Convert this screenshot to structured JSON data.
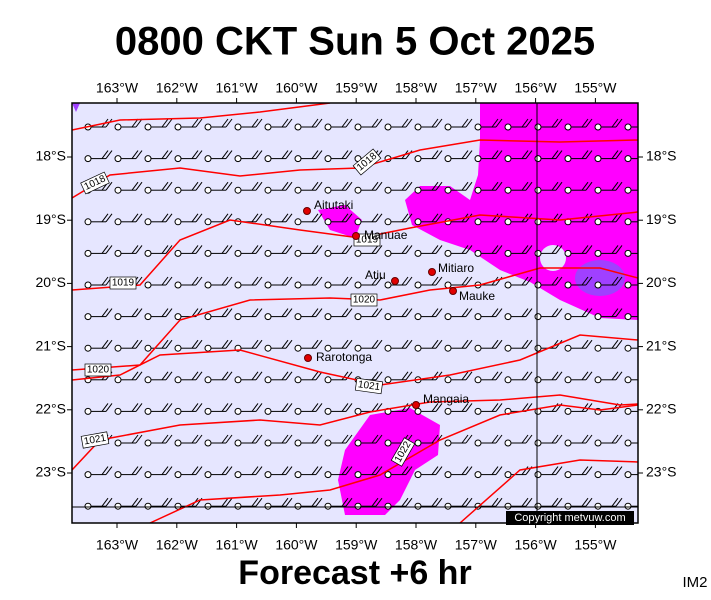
{
  "title": "0800 CKT Sun 5 Oct 2025",
  "footer": "Forecast +6 hr",
  "corner_label": "IM2",
  "copyright": "Copyright metvuw.com",
  "longitudes": [
    "163°W",
    "162°W",
    "161°W",
    "160°W",
    "159°W",
    "158°W",
    "157°W",
    "156°W",
    "155°W"
  ],
  "latitudes": [
    "18°S",
    "19°S",
    "20°S",
    "21°S",
    "22°S",
    "23°S"
  ],
  "islands": [
    "Aitutaki",
    "Manuae",
    "Atiu",
    "Mitiaro",
    "Mauke",
    "Rarotonga",
    "Mangaia"
  ],
  "isobar_labels": [
    "1018",
    "1018",
    "1019",
    "1019",
    "1020",
    "1020",
    "1021",
    "1021",
    "1022"
  ]
}
